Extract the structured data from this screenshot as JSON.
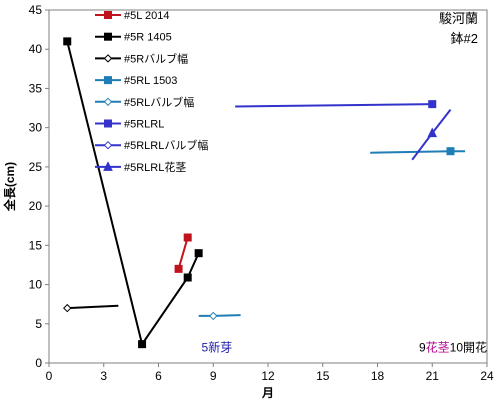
{
  "chart_data": {
    "type": "line",
    "xlabel": "月",
    "ylabel": "全長(cm)",
    "xlim": [
      0,
      24
    ],
    "ylim": [
      0,
      45
    ],
    "xticks": [
      0,
      3,
      6,
      9,
      12,
      15,
      18,
      21,
      24
    ],
    "yticks": [
      0,
      5,
      10,
      15,
      20,
      25,
      30,
      35,
      40,
      45
    ],
    "grid": false,
    "legend_position": "top-left",
    "corner_text": [
      "駿河蘭",
      "鉢#2"
    ],
    "series": [
      {
        "name": "#5L 2014",
        "color": "#C0141C",
        "marker": "square",
        "line": true,
        "points": [
          [
            7.1,
            12
          ],
          [
            7.6,
            16
          ]
        ]
      },
      {
        "name": "#5R 1405",
        "color": "#000000",
        "marker": "square",
        "line": true,
        "points": [
          [
            1.0,
            41
          ],
          [
            5.1,
            2.4
          ],
          [
            7.6,
            10.9
          ],
          [
            8.2,
            14
          ]
        ]
      },
      {
        "name": "#5Rバルブ幅",
        "color": "#000000",
        "marker": "diamond-open",
        "line": true,
        "points": [
          [
            1.0,
            7.0
          ],
          [
            3.8,
            7.3
          ]
        ],
        "marker_points": [
          [
            1.0,
            7.0
          ]
        ]
      },
      {
        "name": "#5RL 1503",
        "color": "#1F7EB5",
        "marker": "square",
        "line": true,
        "points": [
          [
            17.6,
            26.8
          ],
          [
            22.0,
            27.0
          ],
          [
            22.8,
            27.0
          ]
        ],
        "marker_points": [
          [
            22.0,
            27.0
          ]
        ]
      },
      {
        "name": "#5RLバルブ幅",
        "color": "#1F7EB5",
        "marker": "diamond-open",
        "line": true,
        "points": [
          [
            8.2,
            6.0
          ],
          [
            9.0,
            6.0
          ],
          [
            10.5,
            6.1
          ]
        ],
        "marker_points": [
          [
            9.0,
            6.0
          ]
        ]
      },
      {
        "name": "#5RLRL",
        "color": "#3333CC",
        "marker": "square",
        "line": true,
        "points": [
          [
            10.2,
            32.7
          ],
          [
            21.0,
            33.0
          ]
        ],
        "marker_points": [
          [
            21.0,
            33.0
          ]
        ]
      },
      {
        "name": "#5RLRLバルブ幅",
        "color": "#3333CC",
        "marker": "diamond-open",
        "line": true,
        "points": [],
        "marker_points": []
      },
      {
        "name": "#5RLRL花茎",
        "color": "#3333CC",
        "marker": "triangle",
        "line": true,
        "points": [
          [
            19.9,
            25.9
          ],
          [
            21.0,
            29.3
          ],
          [
            22.0,
            32.3
          ]
        ],
        "marker_points": [
          [
            21.0,
            29.3
          ]
        ]
      }
    ],
    "annotations": [
      {
        "parts": [
          {
            "text": "5新芽",
            "color": "#1A1AA8"
          }
        ],
        "x": 9.2,
        "y": 2.0,
        "anchor": "middle"
      },
      {
        "parts": [
          {
            "text": "9",
            "color": "#000000"
          },
          {
            "text": "花茎",
            "color": "#B0008C"
          },
          {
            "text": "10開花",
            "color": "#000000"
          }
        ],
        "x": 24.0,
        "y": 2.0,
        "anchor": "end"
      }
    ]
  }
}
